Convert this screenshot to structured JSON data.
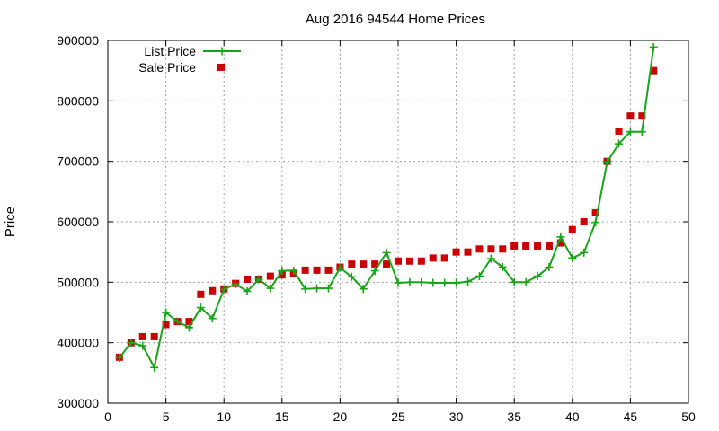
{
  "chart_data": {
    "type": "line",
    "title": "Aug 2016 94544 Home Prices",
    "xlabel": "",
    "ylabel": "Price",
    "xlim": [
      0,
      50
    ],
    "ylim": [
      300000,
      900000
    ],
    "x_ticks": [
      "0",
      "5",
      "10",
      "15",
      "20",
      "25",
      "30",
      "35",
      "40",
      "45",
      "50"
    ],
    "y_ticks": [
      "300000",
      "400000",
      "500000",
      "600000",
      "700000",
      "800000",
      "900000"
    ],
    "grid": true,
    "legend_position": "top-left",
    "series": [
      {
        "name": "List Price",
        "style": "line-points",
        "color": "#1aa31a",
        "marker": "plus",
        "x": [
          1,
          2,
          3,
          4,
          5,
          6,
          7,
          8,
          9,
          10,
          11,
          12,
          13,
          14,
          15,
          16,
          17,
          18,
          19,
          20,
          21,
          22,
          23,
          24,
          25,
          26,
          27,
          28,
          29,
          30,
          31,
          32,
          33,
          34,
          35,
          36,
          37,
          38,
          39,
          40,
          41,
          42,
          43,
          44,
          45,
          46,
          47
        ],
        "y": [
          375000,
          400000,
          395000,
          359000,
          450000,
          435000,
          425000,
          458000,
          440000,
          488000,
          497000,
          485000,
          505000,
          490000,
          519000,
          519000,
          489000,
          490000,
          490000,
          524000,
          509000,
          489000,
          519000,
          549000,
          499000,
          500000,
          500000,
          499000,
          499000,
          499000,
          501000,
          510000,
          539000,
          525000,
          500000,
          500000,
          510000,
          525000,
          575000,
          540000,
          549000,
          599000,
          699000,
          729000,
          749000,
          749000,
          889000
        ]
      },
      {
        "name": "Sale Price",
        "style": "points",
        "color": "#cc0000",
        "marker": "square",
        "x": [
          1,
          2,
          3,
          4,
          5,
          6,
          7,
          8,
          9,
          10,
          11,
          12,
          13,
          14,
          15,
          16,
          17,
          18,
          19,
          20,
          21,
          22,
          23,
          24,
          25,
          26,
          27,
          28,
          29,
          30,
          31,
          32,
          33,
          34,
          35,
          36,
          37,
          38,
          39,
          40,
          41,
          42,
          43,
          44,
          45,
          46,
          47
        ],
        "y": [
          376000,
          400000,
          410000,
          410000,
          430000,
          435000,
          435000,
          480000,
          486000,
          489000,
          498000,
          505000,
          505000,
          510000,
          512000,
          515000,
          520000,
          520000,
          520000,
          525000,
          530000,
          530000,
          530000,
          530000,
          535000,
          535000,
          535000,
          540000,
          540000,
          550000,
          550000,
          555000,
          555000,
          555000,
          560000,
          560000,
          560000,
          560000,
          565000,
          587000,
          600000,
          615000,
          700000,
          750000,
          775000,
          775000,
          850000
        ]
      }
    ]
  }
}
